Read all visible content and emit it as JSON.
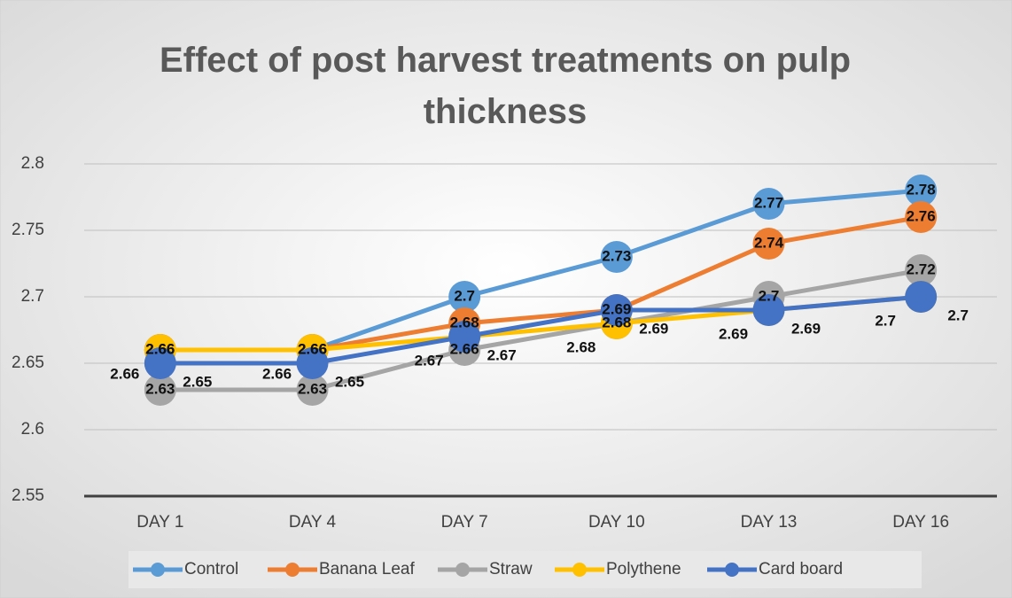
{
  "chart_data": {
    "type": "line",
    "title": "Effect of post harvest treatments on pulp thickness",
    "categories": [
      "DAY 1",
      "DAY 4",
      "DAY 7",
      "DAY 10",
      "DAY 13",
      "DAY 16"
    ],
    "series": [
      {
        "name": "Control",
        "color": "#5b9bd5",
        "values": [
          2.66,
          2.66,
          2.7,
          2.73,
          2.77,
          2.78
        ]
      },
      {
        "name": "Banana Leaf",
        "color": "#ed7d31",
        "values": [
          2.66,
          2.66,
          2.68,
          2.69,
          2.74,
          2.76
        ]
      },
      {
        "name": "Straw",
        "color": "#a5a5a5",
        "values": [
          2.63,
          2.63,
          2.66,
          2.68,
          2.7,
          2.72
        ]
      },
      {
        "name": "Polythene",
        "color": "#ffc000",
        "values": [
          2.66,
          2.66,
          2.67,
          2.68,
          2.69,
          2.7
        ]
      },
      {
        "name": "Card board",
        "color": "#4472c4",
        "values": [
          2.65,
          2.65,
          2.67,
          2.69,
          2.69,
          2.7
        ]
      }
    ],
    "ylim": [
      2.55,
      2.8
    ],
    "yticks": [
      2.55,
      2.6,
      2.65,
      2.7,
      2.75,
      2.8
    ],
    "grid": true,
    "legend": "bottom"
  }
}
